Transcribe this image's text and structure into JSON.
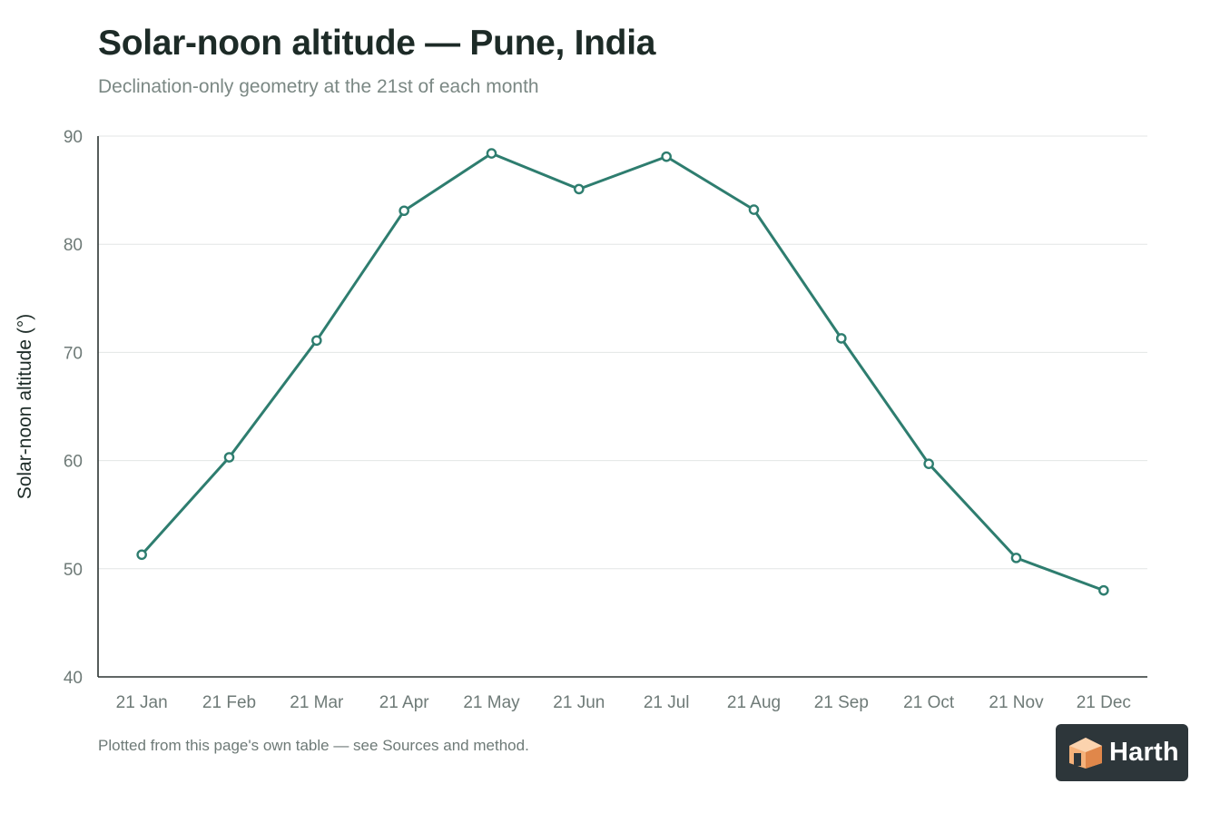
{
  "header": {
    "title": "Solar-noon altitude — Pune, India",
    "subtitle": "Declination-only geometry at the 21st of each month"
  },
  "chart_data": {
    "type": "line",
    "title": "Solar-noon altitude — Pune, India",
    "subtitle": "Declination-only geometry at the 21st of each month",
    "xlabel": "",
    "ylabel": "Solar-noon altitude (°)",
    "categories": [
      "21 Jan",
      "21 Feb",
      "21 Mar",
      "21 Apr",
      "21 May",
      "21 Jun",
      "21 Jul",
      "21 Aug",
      "21 Sep",
      "21 Oct",
      "21 Nov",
      "21 Dec"
    ],
    "series": [
      {
        "values": [
          51.3,
          60.3,
          71.1,
          83.1,
          88.4,
          85.1,
          88.1,
          83.2,
          71.3,
          59.7,
          51.0,
          48.0
        ]
      }
    ],
    "ylim": [
      40,
      90
    ],
    "yticks": [
      40,
      50,
      60,
      70,
      80,
      90
    ],
    "grid": true,
    "legend": "none",
    "color": "#2e7d6f"
  },
  "footer": {
    "note": "Plotted from this page's own table — see Sources and method."
  },
  "logo": {
    "text": "Harth",
    "icon": "house-cube-icon",
    "colors": {
      "badge": "#2d363a",
      "mark_light": "#f6b27a",
      "mark_dark": "#e0874a"
    }
  }
}
